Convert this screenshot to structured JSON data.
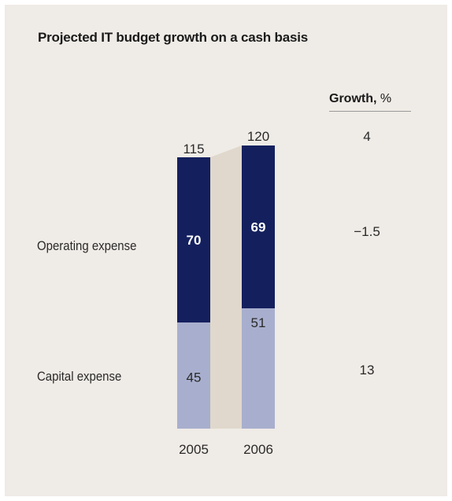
{
  "chart_data": {
    "type": "bar",
    "title": "Projected IT budget growth on a cash basis",
    "categories": [
      "2005",
      "2006"
    ],
    "totals": [
      115,
      120
    ],
    "series": [
      {
        "name": "Operating expense",
        "values": [
          70,
          69
        ],
        "color": "#14205e",
        "label_color": "#ffffff",
        "growth": "−1.5"
      },
      {
        "name": "Capital expense",
        "values": [
          45,
          51
        ],
        "color": "#a8afce",
        "label_color": "#2a2a2a",
        "growth": "13"
      }
    ],
    "growth_header_bold": "Growth,",
    "growth_header_unit": "%",
    "total_growth": "4",
    "connector_color": "#e0d8cc"
  }
}
